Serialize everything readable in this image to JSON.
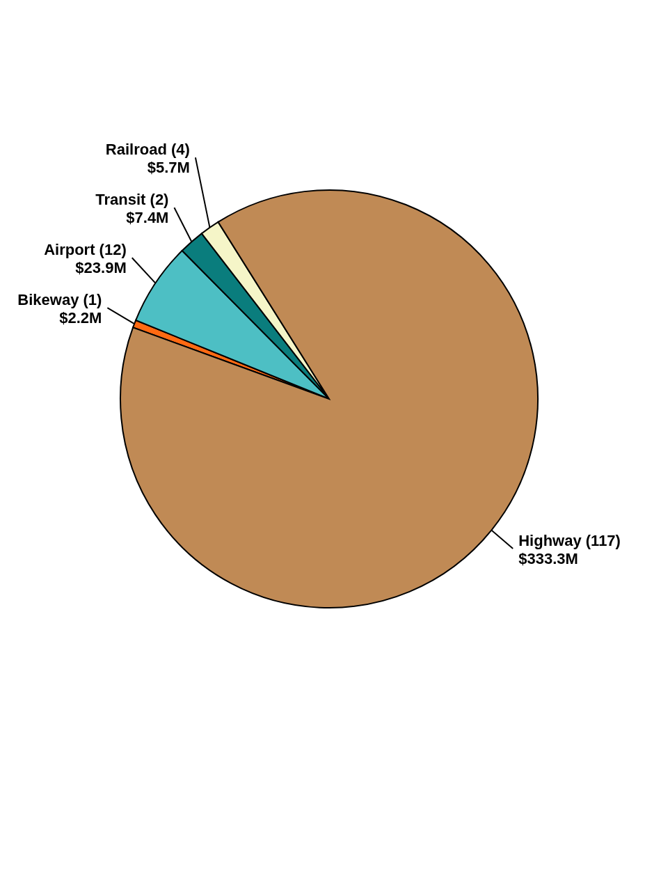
{
  "chart_data": {
    "type": "pie",
    "categories": [
      "Bikeway (1)",
      "Airport (12)",
      "Transit (2)",
      "Railroad (4)",
      "Highway (117)"
    ],
    "values": [
      2.2,
      23.9,
      7.4,
      5.7,
      333.3
    ],
    "value_labels": [
      "$2.2M",
      "$23.9M",
      "$7.4M",
      "$5.7M",
      "$333.3M"
    ],
    "colors": [
      "#ff6a13",
      "#4dbfc4",
      "#0a7d7d",
      "#f5f5c8",
      "#c08a55"
    ]
  }
}
